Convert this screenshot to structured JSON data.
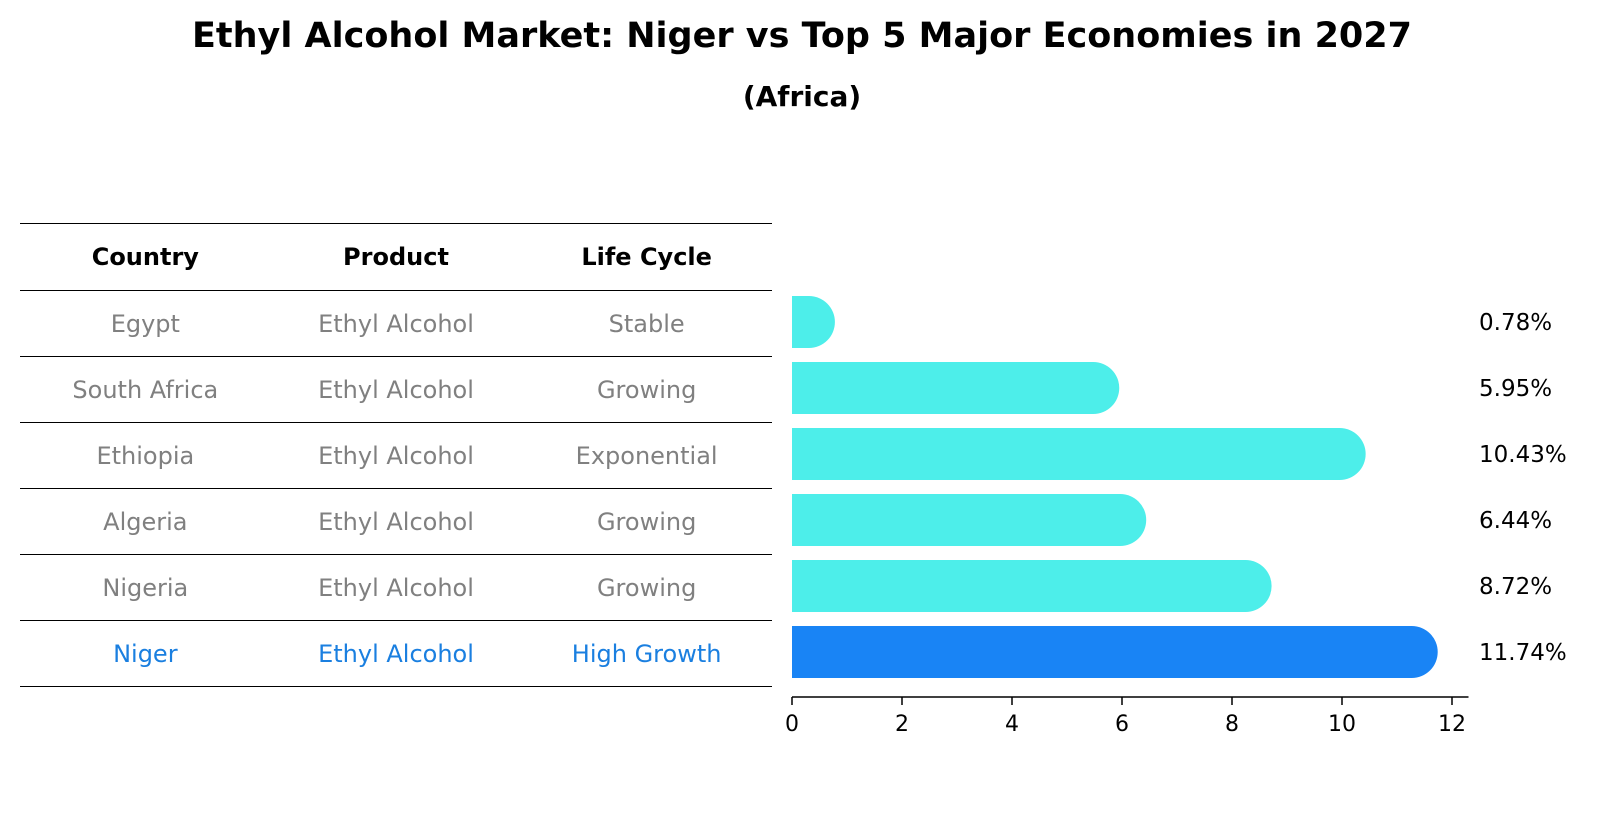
{
  "chart_data": {
    "type": "bar",
    "orientation": "horizontal",
    "title": "Ethyl Alcohol Market: Niger vs Top 5 Major Economies in 2027",
    "subtitle": "(Africa)",
    "categories": [
      "Egypt",
      "South Africa",
      "Ethiopia",
      "Algeria",
      "Nigeria",
      "Niger"
    ],
    "values": [
      0.78,
      5.95,
      10.43,
      6.44,
      8.72,
      11.74
    ],
    "value_labels": [
      "0.78%",
      "5.95%",
      "10.43%",
      "6.44%",
      "8.72%",
      "11.74%"
    ],
    "highlight": "Niger",
    "xlim": [
      0,
      12.3
    ],
    "xticks": [
      "0",
      "2",
      "4",
      "6",
      "8",
      "10",
      "12"
    ],
    "colors": {
      "default": "#4deeea",
      "highlight": "#1984f5"
    },
    "grid": false,
    "legend": "none"
  },
  "table": {
    "headers": [
      "Country",
      "Product",
      "Life Cycle"
    ],
    "rows": [
      [
        "Egypt",
        "Ethyl Alcohol",
        "Stable"
      ],
      [
        "South Africa",
        "Ethyl Alcohol",
        "Growing"
      ],
      [
        "Ethiopia",
        "Ethyl Alcohol",
        "Exponential"
      ],
      [
        "Algeria",
        "Ethyl Alcohol",
        "Growing"
      ],
      [
        "Nigeria",
        "Ethyl Alcohol",
        "Growing"
      ],
      [
        "Niger",
        "Ethyl Alcohol",
        "High Growth"
      ]
    ],
    "highlight_color": "#1a7fe0"
  }
}
